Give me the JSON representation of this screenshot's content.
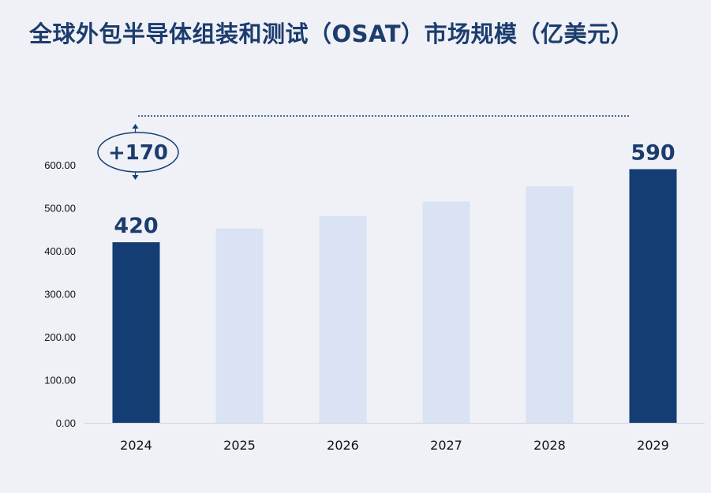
{
  "colors": {
    "highlight_bar": "#143d73",
    "muted_bar": "#dae3f4",
    "text_primary": "#1c3c6e",
    "axis_line": "#d0d3da",
    "background": "#eff1f6"
  },
  "chart_data": {
    "type": "bar",
    "title": "全球外包半导体组装和测试（OSAT）市场规模（亿美元）",
    "xlabel": "",
    "ylabel": "",
    "categories": [
      "2024",
      "2025",
      "2026",
      "2027",
      "2028",
      "2029"
    ],
    "values": [
      420,
      452,
      481,
      515,
      550,
      590
    ],
    "highlighted": [
      true,
      false,
      false,
      false,
      false,
      true
    ],
    "data_labels": [
      "420",
      "",
      "",
      "",
      "",
      "590"
    ],
    "ylim": [
      0,
      600
    ],
    "yticks": [
      "0.00",
      "100.00",
      "200.00",
      "300.00",
      "400.00",
      "500.00",
      "600.00"
    ],
    "grid": false,
    "legend": "none",
    "annotation": {
      "text": "+170",
      "from": 420,
      "to": 590
    }
  }
}
